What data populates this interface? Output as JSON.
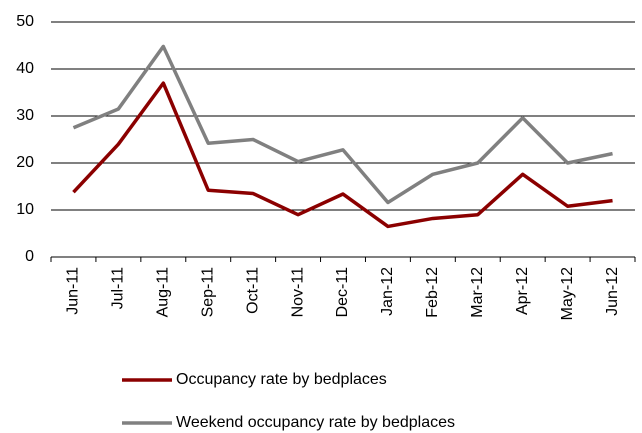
{
  "chart_data": {
    "type": "line",
    "categories": [
      "Jun-11",
      "Jul-11",
      "Aug-11",
      "Sep-11",
      "Oct-11",
      "Nov-11",
      "Dec-11",
      "Jan-12",
      "Feb-12",
      "Mar-12",
      "Apr-12",
      "May-12",
      "Jun-12"
    ],
    "series": [
      {
        "name": "Occupancy rate by bedplaces",
        "color": "#8b0000",
        "values": [
          13.8,
          24,
          37,
          14.2,
          13.5,
          9,
          13.4,
          6.5,
          8.2,
          9,
          17.6,
          10.8,
          12
        ]
      },
      {
        "name": "Weekend occupancy rate by bedplaces",
        "color": "#808080",
        "values": [
          27.5,
          31.5,
          44.8,
          24.2,
          25,
          20.3,
          22.8,
          11.6,
          17.6,
          20,
          29.6,
          20,
          22
        ]
      }
    ],
    "ylim": [
      0,
      50
    ],
    "yticks": [
      0,
      10,
      20,
      30,
      40,
      50
    ],
    "grid": true,
    "legend": "bottom"
  }
}
